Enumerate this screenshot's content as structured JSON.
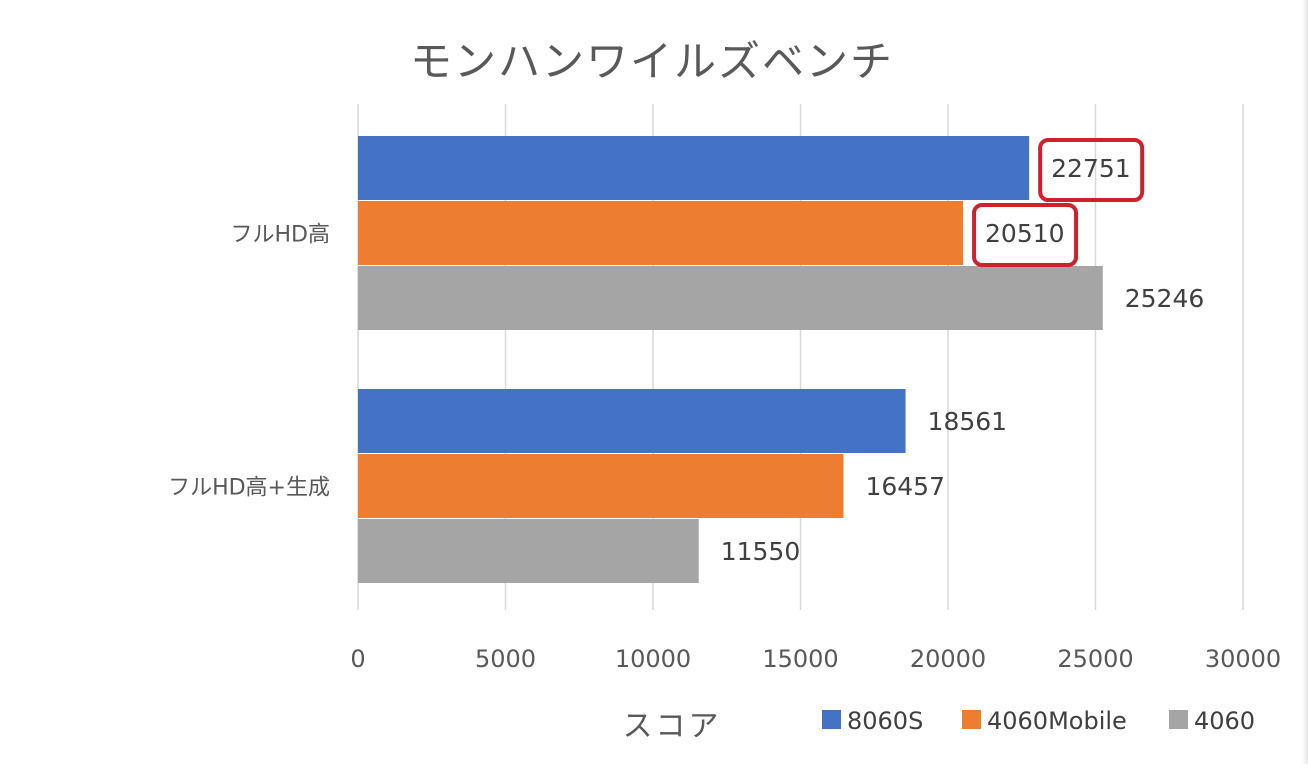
{
  "chart_data": {
    "type": "bar",
    "orientation": "horizontal",
    "title": "モンハンワイルズベンチ",
    "xlabel": "スコア",
    "ylabel": "",
    "xlim": [
      0,
      30000
    ],
    "ticks": [
      "0",
      "5000",
      "10000",
      "15000",
      "20000",
      "25000",
      "30000"
    ],
    "tick_values": [
      0,
      5000,
      10000,
      15000,
      20000,
      25000,
      30000
    ],
    "categories": [
      "フルHD高",
      "フルHD高+生成"
    ],
    "series": [
      {
        "name": "8060S",
        "color": "#4472C4",
        "values": [
          22751,
          18561
        ]
      },
      {
        "name": "4060Mobile",
        "color": "#ED7D31",
        "values": [
          20510,
          16457
        ]
      },
      {
        "name": "4060",
        "color": "#A5A5A5",
        "values": [
          25246,
          11550
        ]
      }
    ],
    "highlighted": [
      {
        "category_index": 0,
        "series_index": 0,
        "color": "#D0202E"
      },
      {
        "category_index": 0,
        "series_index": 1,
        "color": "#D0202E"
      }
    ],
    "grid": true,
    "legend_position": "bottom-right"
  }
}
